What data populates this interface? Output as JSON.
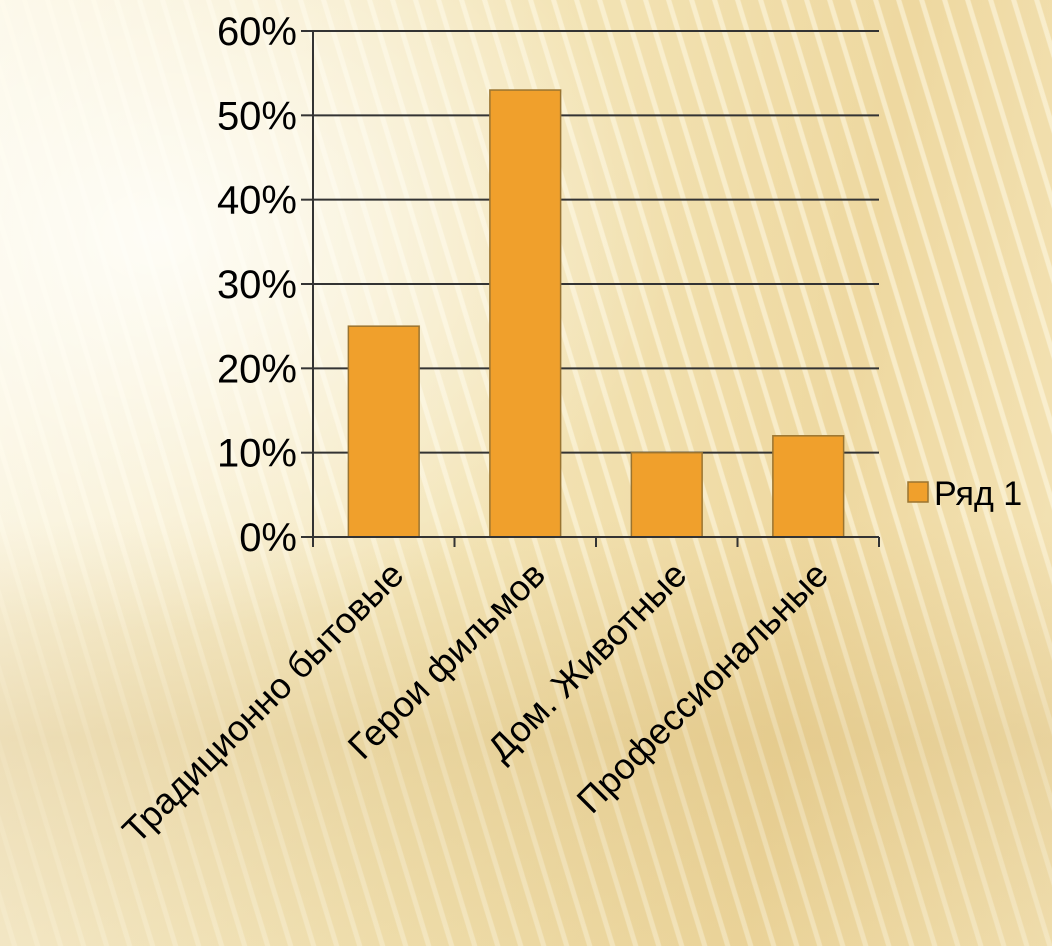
{
  "chart_data": {
    "type": "bar",
    "categories": [
      "Традиционно бытовые",
      "Герои фильмов",
      "Дом. Животные",
      "Профессиональные"
    ],
    "series": [
      {
        "name": "Ряд 1",
        "values": [
          25,
          53,
          10,
          12
        ]
      }
    ],
    "y_ticks": [
      "0%",
      "10%",
      "20%",
      "30%",
      "40%",
      "50%",
      "60%"
    ],
    "ylim": [
      0,
      60
    ],
    "y_unit": "%",
    "grid": true,
    "legend": "right",
    "colors": {
      "bar": "#f0a02c",
      "bar_stroke": "#9a7430",
      "gridline": "#333333",
      "axis": "#333333"
    }
  }
}
